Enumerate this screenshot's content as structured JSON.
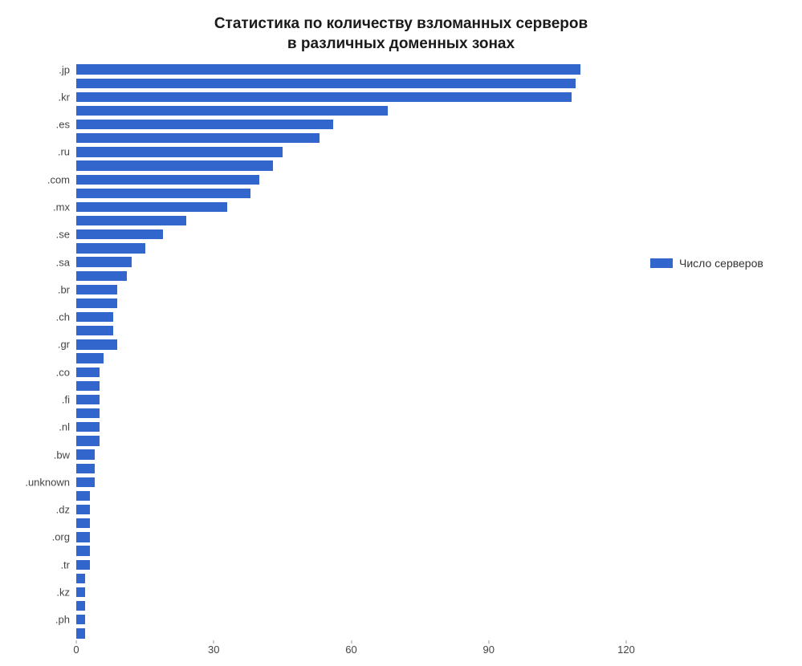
{
  "chart": {
    "type": "bar-horizontal",
    "title_line1": "Статистика по количеству взломанных серверов",
    "title_line2": "в различных доменных зонах",
    "title_fontsize": 19,
    "title_color": "#1a1a1a",
    "background_color": "#ffffff",
    "bar_color": "#3366cc",
    "axis_label_color": "#444444",
    "axis_label_fontsize": 13,
    "xlim_min": 0,
    "xlim_max": 120,
    "xticks": [
      0,
      30,
      60,
      90,
      120
    ],
    "bar_gap_ratio": 0.28,
    "legend": {
      "label": "Число серверов",
      "swatch_color": "#3366cc",
      "fontsize": 14
    },
    "ylabels_every": 2,
    "categories": [
      ".jp",
      "",
      ".kr",
      "",
      ".es",
      "",
      ".ru",
      "",
      ".com",
      "",
      ".mx",
      "",
      ".se",
      "",
      ".sa",
      "",
      ".br",
      "",
      ".ch",
      "",
      ".gr",
      "",
      ".co",
      "",
      ".fi",
      "",
      ".nl",
      "",
      ".bw",
      "",
      ".unknown",
      "",
      ".dz",
      "",
      ".org",
      "",
      ".tr",
      "",
      ".kz",
      "",
      ".ph",
      ""
    ],
    "values": [
      110,
      109,
      108,
      68,
      56,
      53,
      45,
      43,
      40,
      38,
      33,
      24,
      19,
      15,
      12,
      11,
      9,
      9,
      8,
      8,
      9,
      6,
      5,
      5,
      5,
      5,
      5,
      5,
      4,
      4,
      4,
      3,
      3,
      3,
      3,
      3,
      3,
      2,
      2,
      2,
      2,
      2
    ]
  }
}
